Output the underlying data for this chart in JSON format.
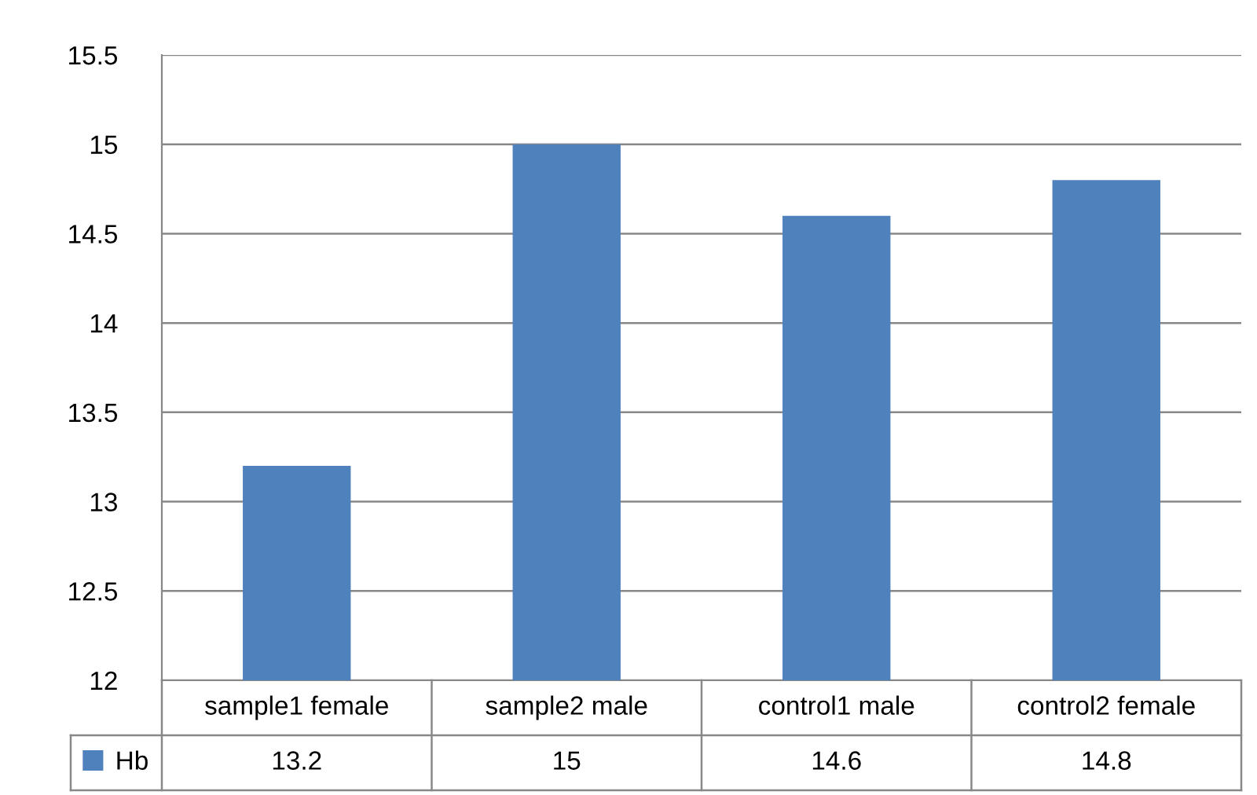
{
  "chart_data": {
    "type": "bar",
    "categories": [
      "sample1 female",
      "sample2 male",
      "control1 male",
      "control2 female"
    ],
    "series": [
      {
        "name": "Hb",
        "color": "#4f81bd",
        "values": [
          13.2,
          15,
          14.6,
          14.8
        ]
      }
    ],
    "ylim": [
      12,
      15.5
    ],
    "yticks": [
      12,
      12.5,
      13,
      13.5,
      14,
      14.5,
      15,
      15.5
    ],
    "grid": "y",
    "legend": "bottom left",
    "data_labels": true
  }
}
